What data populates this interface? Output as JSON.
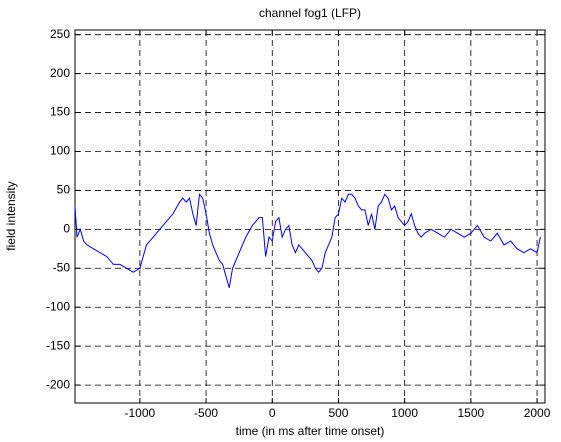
{
  "chart_data": {
    "type": "line",
    "title": "channel fog1 (LFP)",
    "x_label": "time (in ms after time onset)",
    "y_label": "field intensity",
    "x": [
      -1490,
      -1475,
      -1450,
      -1425,
      -1400,
      -1350,
      -1300,
      -1250,
      -1200,
      -1150,
      -1100,
      -1050,
      -1000,
      -975,
      -950,
      -900,
      -850,
      -800,
      -750,
      -700,
      -675,
      -650,
      -625,
      -600,
      -575,
      -550,
      -525,
      -500,
      -475,
      -450,
      -425,
      -400,
      -375,
      -350,
      -325,
      -300,
      -275,
      -250,
      -200,
      -150,
      -100,
      -75,
      -50,
      -25,
      0,
      25,
      50,
      75,
      100,
      125,
      150,
      175,
      200,
      250,
      300,
      325,
      350,
      375,
      400,
      425,
      450,
      475,
      500,
      525,
      550,
      575,
      600,
      625,
      650,
      675,
      700,
      725,
      750,
      775,
      800,
      825,
      850,
      875,
      900,
      925,
      950,
      975,
      1000,
      1025,
      1050,
      1075,
      1100,
      1125,
      1150,
      1200,
      1250,
      1300,
      1350,
      1400,
      1450,
      1500,
      1550,
      1600,
      1650,
      1700,
      1750,
      1800,
      1850,
      1900,
      1950,
      2000,
      2025
    ],
    "series": [
      {
        "color": "#0000ff",
        "values": [
          30,
          -10,
          0,
          -15,
          -20,
          -25,
          -30,
          -35,
          -45,
          -45,
          -50,
          -55,
          -50,
          -35,
          -20,
          -10,
          0,
          10,
          20,
          35,
          40,
          35,
          40,
          20,
          5,
          45,
          40,
          20,
          -5,
          -20,
          -30,
          -40,
          -45,
          -60,
          -75,
          -50,
          -40,
          -30,
          -10,
          5,
          15,
          15,
          -35,
          -10,
          -15,
          10,
          15,
          -10,
          0,
          5,
          -20,
          -30,
          -20,
          -30,
          -40,
          -50,
          -55,
          -50,
          -30,
          -20,
          -10,
          15,
          20,
          40,
          35,
          45,
          45,
          40,
          30,
          25,
          25,
          5,
          20,
          0,
          30,
          35,
          45,
          40,
          25,
          30,
          15,
          10,
          5,
          10,
          20,
          5,
          -5,
          -10,
          -5,
          0,
          -5,
          -10,
          0,
          -5,
          -10,
          -5,
          5,
          -10,
          -15,
          -5,
          -20,
          -15,
          -25,
          -30,
          -25,
          -30,
          -10
        ]
      }
    ],
    "xlim": [
      -1490,
      2060
    ],
    "ylim": [
      -223,
      256
    ],
    "xticks": [
      -1000,
      -500,
      0,
      500,
      1000,
      1500,
      2000
    ],
    "yticks": [
      -200,
      -150,
      -100,
      -50,
      0,
      50,
      100,
      150,
      200,
      250
    ],
    "grid": true
  }
}
